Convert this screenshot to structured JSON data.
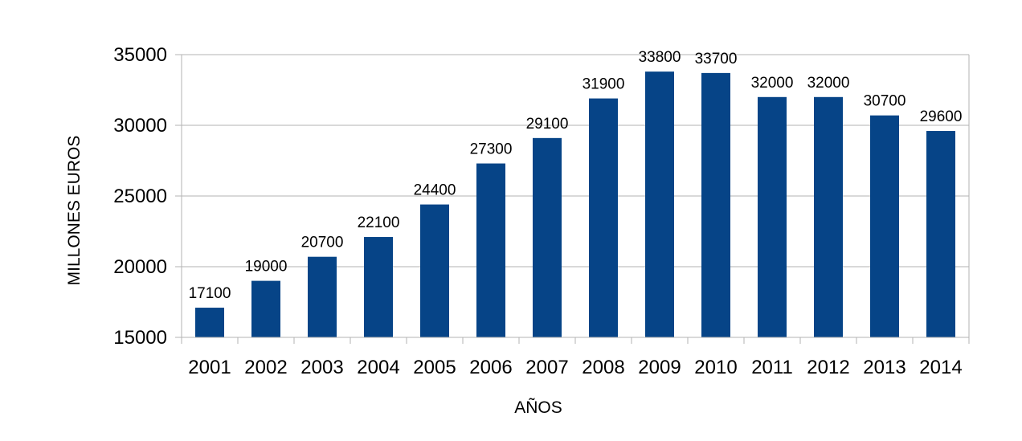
{
  "chart_data": {
    "type": "bar",
    "categories": [
      "2001",
      "2002",
      "2003",
      "2004",
      "2005",
      "2006",
      "2007",
      "2008",
      "2009",
      "2010",
      "2011",
      "2012",
      "2013",
      "2014"
    ],
    "values": [
      17100,
      19000,
      20700,
      22100,
      24400,
      27300,
      29100,
      31900,
      33800,
      33700,
      32000,
      32000,
      30700,
      29600
    ],
    "xlabel": "AÑOS",
    "ylabel": "MILLONES EUROS",
    "ylim": [
      15000,
      35000
    ],
    "yticks": [
      15000,
      20000,
      25000,
      30000,
      35000
    ],
    "grid": true,
    "legend": "none",
    "data_labels": true,
    "colors": {
      "bar": "#064487",
      "grid": "#b3b3b3",
      "axis": "#b3b3b3"
    }
  }
}
